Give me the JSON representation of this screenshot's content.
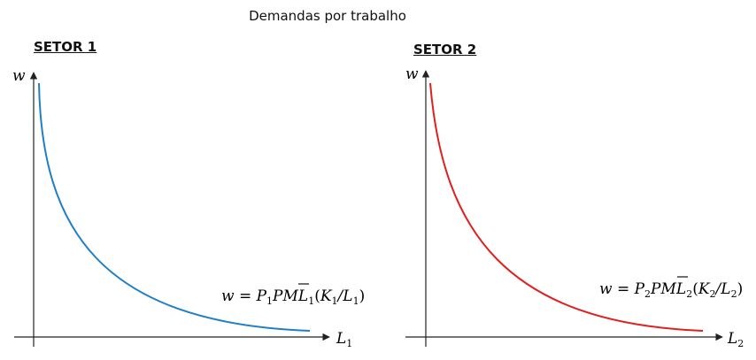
{
  "title": "Demandas por trabalho",
  "sectors": [
    {
      "label": "SETOR 1",
      "y_axis_label": "w",
      "x_axis_label": "L",
      "x_axis_sub": "1",
      "curve_color": "#1f7fc6",
      "equation": {
        "lhs": "w = P",
        "p_sub": "1",
        "pml": "PML",
        "pml_sub": "1",
        "open": "(",
        "k": "K",
        "k_sub": "1",
        "slash": "/L",
        "l_sub": "1",
        "close": ")"
      }
    },
    {
      "label": "SETOR 2",
      "y_axis_label": "w",
      "x_axis_label": "L",
      "x_axis_sub": "2",
      "curve_color": "#e02020",
      "equation": {
        "lhs": "w = P",
        "p_sub": "2",
        "pml": "PML",
        "pml_sub": "2",
        "open": "(",
        "k": "K",
        "k_sub": "2",
        "slash": "/L",
        "l_sub": "2",
        "close": ")"
      }
    }
  ]
}
